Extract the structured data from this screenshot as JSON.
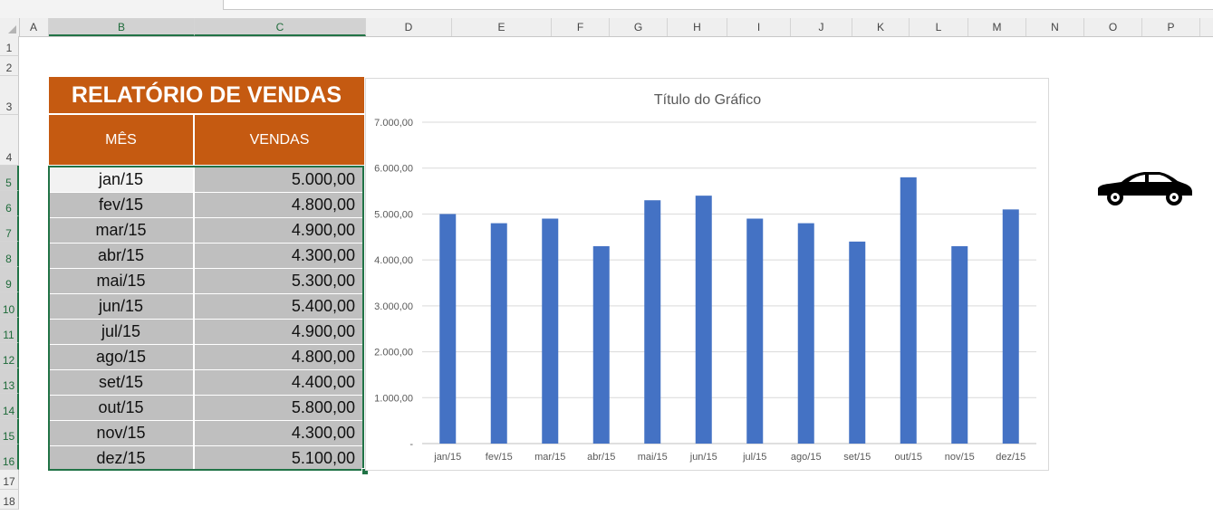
{
  "columns": [
    "A",
    "B",
    "C",
    "D",
    "E",
    "F",
    "G",
    "H",
    "I",
    "J",
    "K",
    "L",
    "M",
    "N",
    "O",
    "P"
  ],
  "rows": [
    "1",
    "2",
    "3",
    "4",
    "5",
    "6",
    "7",
    "8",
    "9",
    "10",
    "11",
    "12",
    "13",
    "14",
    "15",
    "16",
    "17",
    "18"
  ],
  "report": {
    "title": "RELATÓRIO DE VENDAS",
    "header_month": "MÊS",
    "header_sales": "VENDAS",
    "rows": [
      {
        "month": "jan/15",
        "value": "5.000,00"
      },
      {
        "month": "fev/15",
        "value": "4.800,00"
      },
      {
        "month": "mar/15",
        "value": "4.900,00"
      },
      {
        "month": "abr/15",
        "value": "4.300,00"
      },
      {
        "month": "mai/15",
        "value": "5.300,00"
      },
      {
        "month": "jun/15",
        "value": "5.400,00"
      },
      {
        "month": "jul/15",
        "value": "4.900,00"
      },
      {
        "month": "ago/15",
        "value": "4.800,00"
      },
      {
        "month": "set/15",
        "value": "4.400,00"
      },
      {
        "month": "out/15",
        "value": "5.800,00"
      },
      {
        "month": "nov/15",
        "value": "4.300,00"
      },
      {
        "month": "dez/15",
        "value": "5.100,00"
      }
    ]
  },
  "chart_data": {
    "type": "bar",
    "title": "Título do Gráfico",
    "categories": [
      "jan/15",
      "fev/15",
      "mar/15",
      "abr/15",
      "mai/15",
      "jun/15",
      "jul/15",
      "ago/15",
      "set/15",
      "out/15",
      "nov/15",
      "dez/15"
    ],
    "values": [
      5000,
      4800,
      4900,
      4300,
      5300,
      5400,
      4900,
      4800,
      4400,
      5800,
      4300,
      5100
    ],
    "ylim": [
      0,
      7000
    ],
    "y_ticks": [
      0,
      1000,
      2000,
      3000,
      4000,
      5000,
      6000,
      7000
    ],
    "y_tick_labels": [
      "-",
      "1.000,00",
      "2.000,00",
      "3.000,00",
      "4.000,00",
      "5.000,00",
      "6.000,00",
      "7.000,00"
    ],
    "bar_color": "#4472c4",
    "grid": true,
    "legend": "none"
  },
  "colors": {
    "header_fill": "#c55a11",
    "cell_fill": "#bfbfbf",
    "selection": "#217346"
  },
  "icons": {
    "car": "car-icon"
  }
}
